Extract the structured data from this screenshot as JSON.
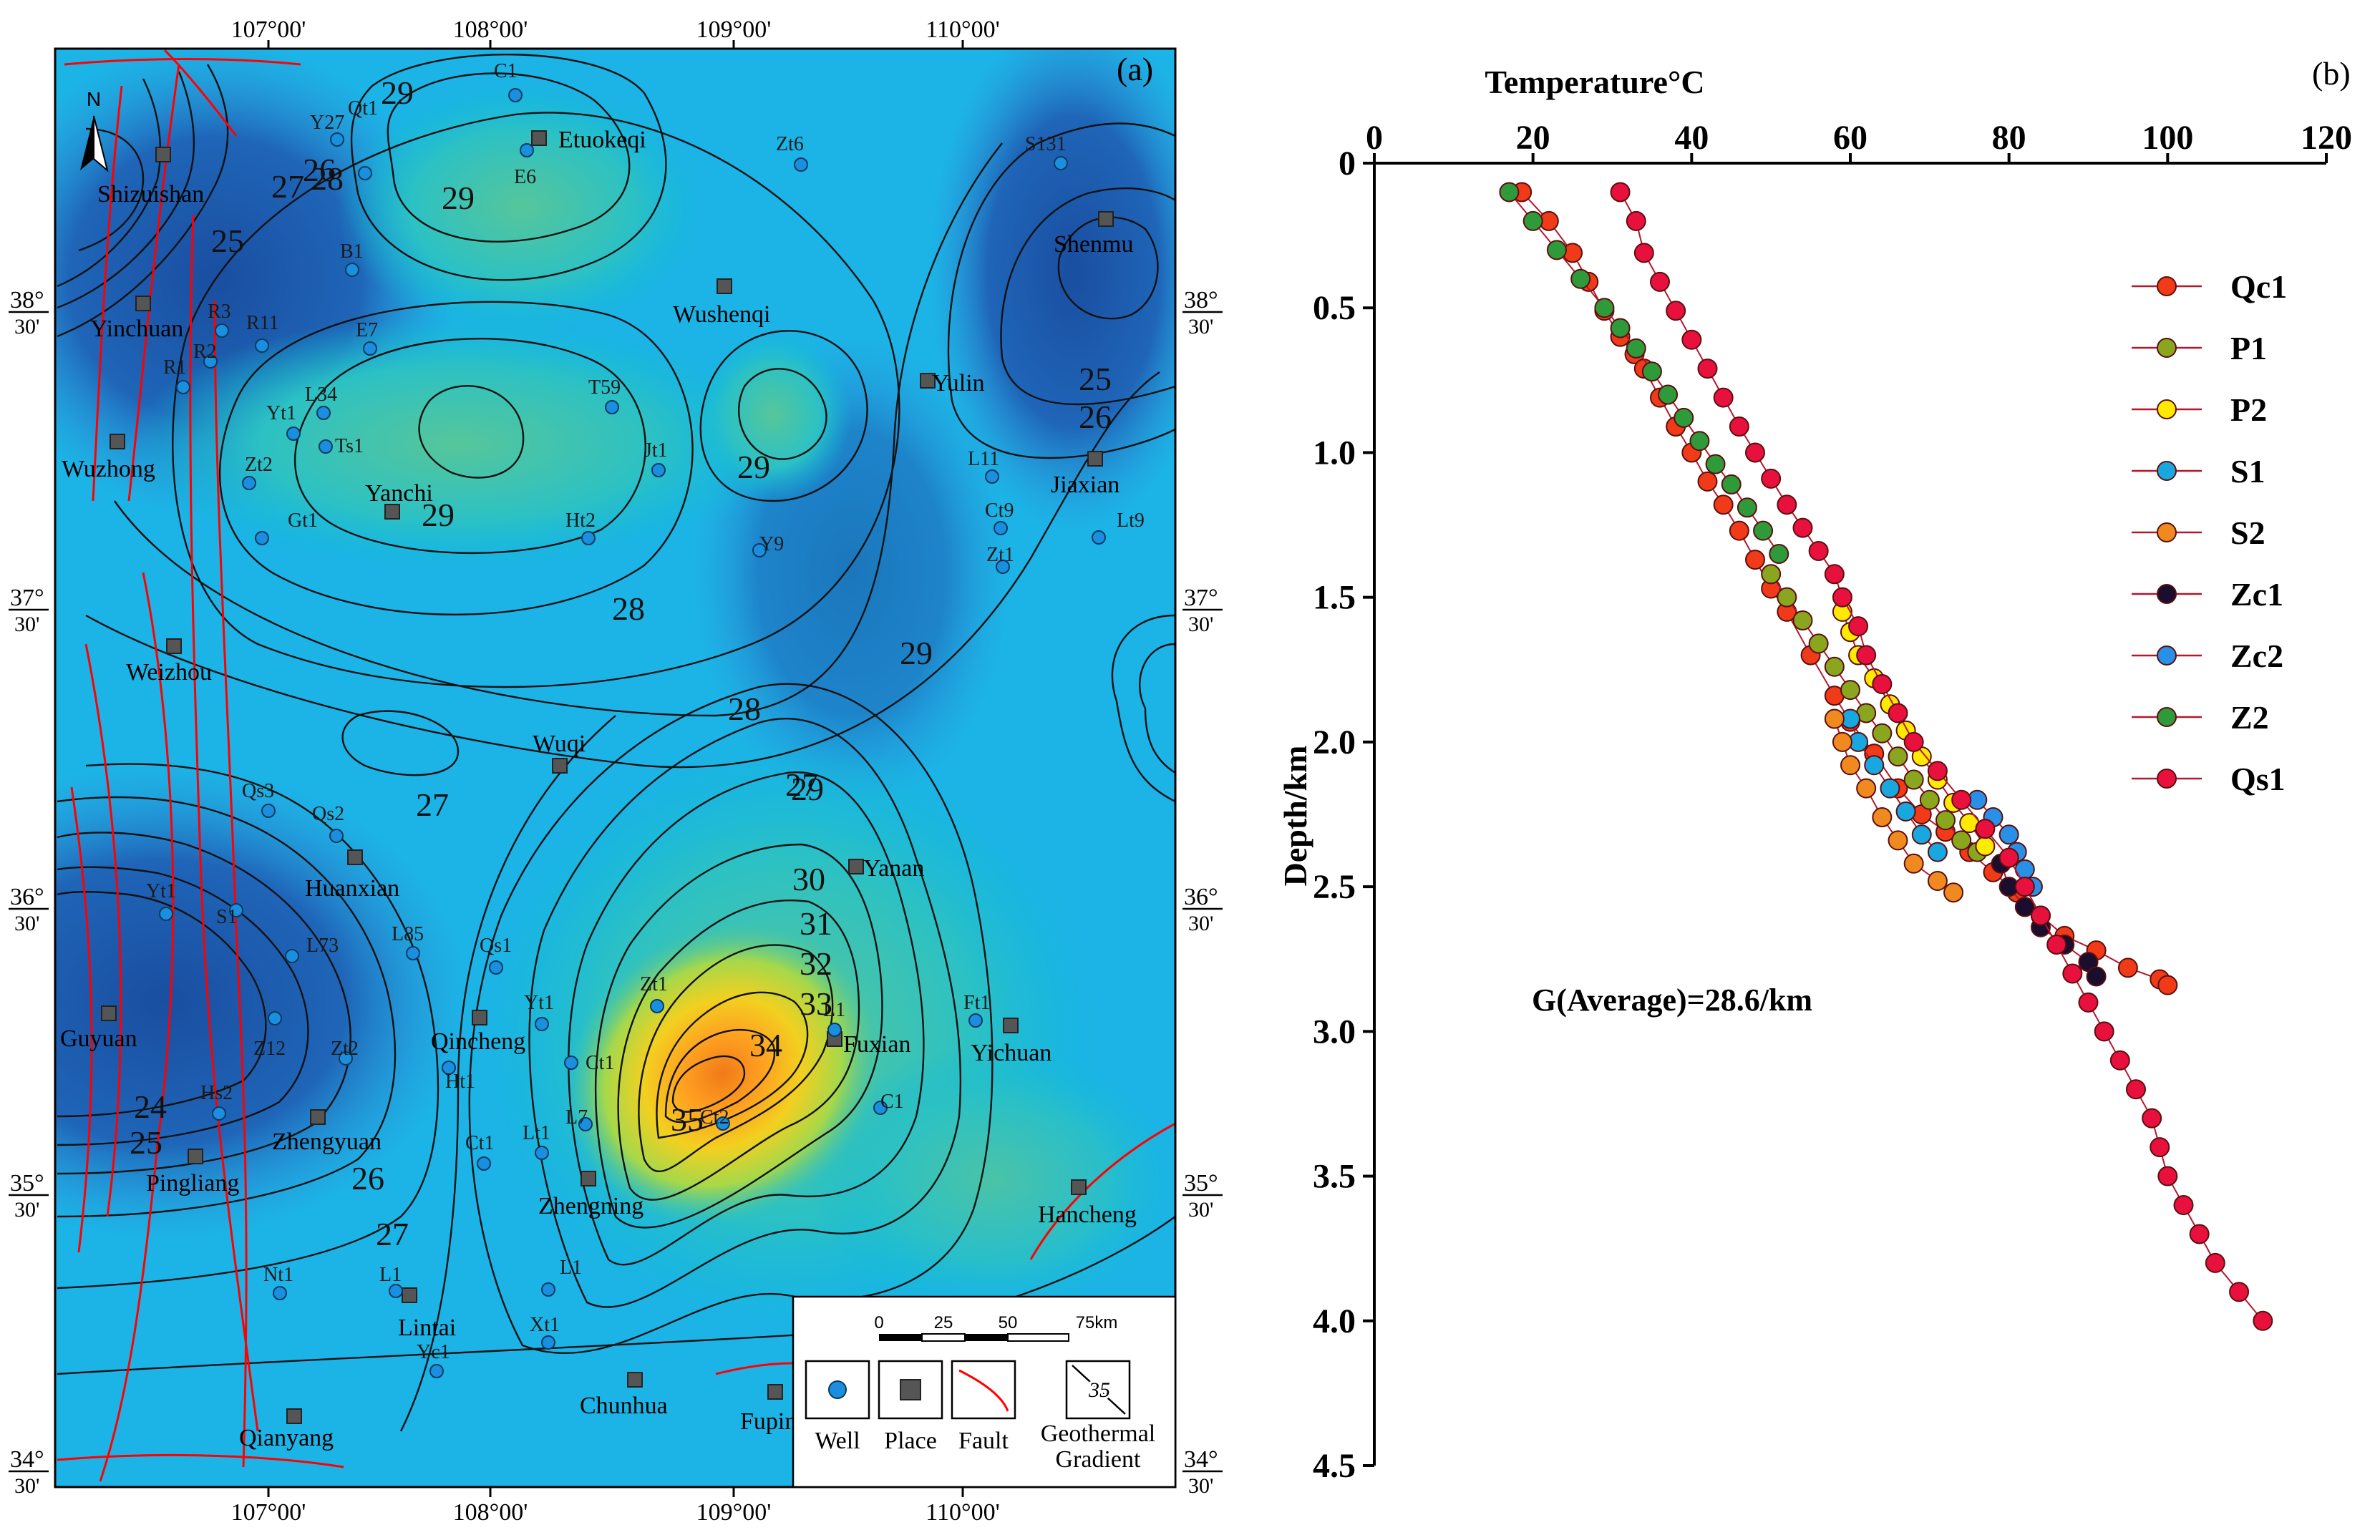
{
  "panel_a": {
    "label": "(a)",
    "north": "N",
    "top_ticks": [
      "107°00'",
      "108°00'",
      "109°00'",
      "110°00'"
    ],
    "lat_ticks": [
      {
        "deg": "38°",
        "min": "30'"
      },
      {
        "deg": "37°",
        "min": "30'"
      },
      {
        "deg": "36°",
        "min": "30'"
      },
      {
        "deg": "35°",
        "min": "30'"
      },
      {
        "deg": "34°",
        "min": "30'"
      }
    ],
    "places": [
      "Shizuishan",
      "Etuokeqi",
      "Shenmu",
      "Yinchuan",
      "Wushenqi",
      "Yulin",
      "Wuzhong",
      "Yanchi",
      "Jiaxian",
      "Weizhou",
      "Wuqi",
      "Huanxian",
      "Yanan",
      "Guyuan",
      "Qincheng",
      "Fuxian",
      "Yichuan",
      "Zhengyuan",
      "Pingliang",
      "Zhengning",
      "Hancheng",
      "Lintai",
      "Qianyang",
      "Chunhua",
      "Fuping"
    ],
    "wells": [
      "C1",
      "Y27",
      "Qt1",
      "Zt6",
      "S131",
      "E6",
      "B1",
      "R3",
      "R11",
      "R1",
      "R2",
      "E7",
      "L34",
      "Yt1",
      "Ts1",
      "T59",
      "Zt2",
      "Jt1",
      "L11",
      "Gt1",
      "Ht2",
      "Ct9",
      "Zt1",
      "Lt9",
      "Y9",
      "Qs3",
      "Qs2",
      "Yt1",
      "S1",
      "L85",
      "L73",
      "Qs1",
      "Z12",
      "Zt2",
      "Zt1",
      "L1",
      "Ft1",
      "Yt1",
      "Ct1",
      "Ht1",
      "L7",
      "Ct2",
      "Hs2",
      "Lt1",
      "Ct1",
      "Nt1",
      "L1",
      "L1",
      "Xt1",
      "Yc1",
      "C1"
    ],
    "contour_labels": [
      "29",
      "27",
      "28",
      "26",
      "25",
      "29",
      "29",
      "25",
      "26",
      "29",
      "28",
      "29",
      "27",
      "28",
      "27",
      "29",
      "30",
      "31",
      "32",
      "33",
      "34",
      "35",
      "24",
      "25",
      "26",
      "27"
    ],
    "legend": {
      "scale": [
        "0",
        "25",
        "50",
        "75km"
      ],
      "items": [
        "Well",
        "Place",
        "Fault",
        "Geothermal",
        "Gradient"
      ],
      "sample_value": "35"
    },
    "colors": {
      "low": "#1f4fa0",
      "mid": "#00b6ea",
      "high": "#f08a18",
      "fault": "#ff0000",
      "place": "#555555",
      "well": "#1a8fe0"
    }
  },
  "chart_data": {
    "type": "scatter",
    "label": "(b)",
    "title": "",
    "xlabel": "Temperature°C",
    "ylabel": "Depth/km",
    "x_axis_position": "top",
    "y_inverted": true,
    "xlim": [
      0,
      120
    ],
    "ylim": [
      0,
      4.5
    ],
    "xticks": [
      "0",
      "20",
      "40",
      "60",
      "80",
      "100",
      "120"
    ],
    "yticks": [
      "0",
      "0.5",
      "1.0",
      "1.5",
      "2.0",
      "2.5",
      "3.0",
      "3.5",
      "4.0",
      "4.5"
    ],
    "annotation": "G(Average)=28.6/km",
    "legend_position": "right",
    "series": [
      {
        "name": "Qc1",
        "color": "#f03a18",
        "points": [
          [
            18.6,
            0.1
          ],
          [
            22,
            0.2
          ],
          [
            25,
            0.31
          ],
          [
            27,
            0.41
          ],
          [
            29,
            0.51
          ],
          [
            31,
            0.6
          ],
          [
            32.8,
            0.66
          ],
          [
            34,
            0.71
          ],
          [
            36,
            0.81
          ],
          [
            38,
            0.91
          ],
          [
            40,
            1.0
          ],
          [
            42,
            1.1
          ],
          [
            44,
            1.18
          ],
          [
            46,
            1.27
          ],
          [
            48,
            1.37
          ],
          [
            50,
            1.47
          ],
          [
            52,
            1.55
          ],
          [
            55,
            1.7
          ],
          [
            58,
            1.84
          ],
          [
            60,
            1.93
          ],
          [
            63,
            2.04
          ],
          [
            66,
            2.16
          ],
          [
            69,
            2.25
          ],
          [
            72,
            2.31
          ],
          [
            75,
            2.38
          ],
          [
            78,
            2.45
          ],
          [
            81,
            2.52
          ],
          [
            84,
            2.6
          ],
          [
            87,
            2.67
          ],
          [
            91,
            2.72
          ],
          [
            95,
            2.78
          ],
          [
            99,
            2.82
          ],
          [
            100,
            2.84
          ]
        ]
      },
      {
        "name": "P1",
        "color": "#8aa61e",
        "points": [
          [
            50,
            1.42
          ],
          [
            52,
            1.5
          ],
          [
            54,
            1.58
          ],
          [
            56,
            1.66
          ],
          [
            58,
            1.74
          ],
          [
            60,
            1.82
          ],
          [
            62,
            1.9
          ],
          [
            64,
            1.97
          ],
          [
            66,
            2.05
          ],
          [
            68,
            2.13
          ],
          [
            70,
            2.2
          ],
          [
            72,
            2.27
          ],
          [
            74,
            2.34
          ],
          [
            76,
            2.38
          ]
        ]
      },
      {
        "name": "P2",
        "color": "#ffea00",
        "points": [
          [
            59,
            1.55
          ],
          [
            60,
            1.62
          ],
          [
            61,
            1.7
          ],
          [
            63,
            1.78
          ],
          [
            65,
            1.87
          ],
          [
            67,
            1.96
          ],
          [
            69,
            2.05
          ],
          [
            71,
            2.13
          ],
          [
            73,
            2.21
          ],
          [
            75,
            2.28
          ],
          [
            77,
            2.36
          ]
        ]
      },
      {
        "name": "S1",
        "color": "#19a7df",
        "points": [
          [
            60,
            1.92
          ],
          [
            61,
            2.0
          ],
          [
            63,
            2.08
          ],
          [
            65,
            2.16
          ],
          [
            67,
            2.24
          ],
          [
            69,
            2.32
          ],
          [
            71,
            2.38
          ]
        ]
      },
      {
        "name": "S2",
        "color": "#f08a20",
        "points": [
          [
            58,
            1.92
          ],
          [
            59,
            2.0
          ],
          [
            60,
            2.08
          ],
          [
            62,
            2.16
          ],
          [
            64,
            2.26
          ],
          [
            66,
            2.34
          ],
          [
            68,
            2.42
          ],
          [
            71,
            2.48
          ],
          [
            73,
            2.52
          ]
        ]
      },
      {
        "name": "Zc1",
        "color": "#1a0d2e",
        "points": [
          [
            79,
            2.42
          ],
          [
            80,
            2.5
          ],
          [
            82,
            2.57
          ],
          [
            84,
            2.64
          ],
          [
            87,
            2.7
          ],
          [
            90,
            2.76
          ],
          [
            91,
            2.81
          ]
        ]
      },
      {
        "name": "Zc2",
        "color": "#2a8fe6",
        "points": [
          [
            76,
            2.2
          ],
          [
            78,
            2.26
          ],
          [
            80,
            2.32
          ],
          [
            81,
            2.38
          ],
          [
            82,
            2.44
          ],
          [
            83,
            2.5
          ]
        ]
      },
      {
        "name": "Z2",
        "color": "#2f9a3a",
        "points": [
          [
            17,
            0.1
          ],
          [
            20,
            0.2
          ],
          [
            23,
            0.3
          ],
          [
            26,
            0.4
          ],
          [
            29,
            0.5
          ],
          [
            31,
            0.57
          ],
          [
            33,
            0.64
          ],
          [
            35,
            0.72
          ],
          [
            37,
            0.8
          ],
          [
            39,
            0.88
          ],
          [
            41,
            0.96
          ],
          [
            43,
            1.04
          ],
          [
            45,
            1.11
          ],
          [
            47,
            1.19
          ],
          [
            49,
            1.27
          ],
          [
            51,
            1.35
          ]
        ]
      },
      {
        "name": "Qs1",
        "color": "#e8103c",
        "points": [
          [
            31,
            0.1
          ],
          [
            33,
            0.2
          ],
          [
            34,
            0.31
          ],
          [
            36,
            0.41
          ],
          [
            38,
            0.51
          ],
          [
            40,
            0.61
          ],
          [
            42,
            0.71
          ],
          [
            44,
            0.81
          ],
          [
            46,
            0.91
          ],
          [
            48,
            1.0
          ],
          [
            50,
            1.09
          ],
          [
            52,
            1.18
          ],
          [
            54,
            1.26
          ],
          [
            56,
            1.34
          ],
          [
            58,
            1.42
          ],
          [
            59,
            1.5
          ],
          [
            61,
            1.6
          ],
          [
            62,
            1.7
          ],
          [
            64,
            1.8
          ],
          [
            66,
            1.9
          ],
          [
            68,
            2.0
          ],
          [
            71,
            2.1
          ],
          [
            74,
            2.2
          ],
          [
            77,
            2.3
          ],
          [
            80,
            2.4
          ],
          [
            82,
            2.5
          ],
          [
            84,
            2.6
          ],
          [
            86,
            2.7
          ],
          [
            88,
            2.8
          ],
          [
            90,
            2.9
          ],
          [
            92,
            3.0
          ],
          [
            94,
            3.1
          ],
          [
            96,
            3.2
          ],
          [
            98,
            3.3
          ],
          [
            99,
            3.4
          ],
          [
            100,
            3.5
          ],
          [
            102,
            3.6
          ],
          [
            104,
            3.7
          ],
          [
            106,
            3.8
          ],
          [
            109,
            3.9
          ],
          [
            112,
            4.0
          ]
        ]
      }
    ]
  }
}
